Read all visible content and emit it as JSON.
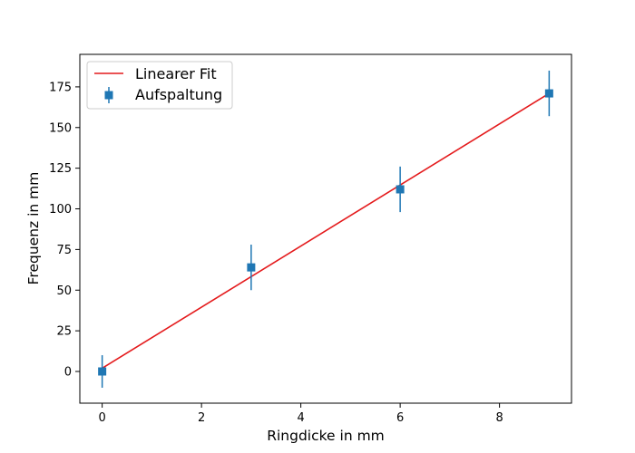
{
  "chart_data": {
    "type": "scatter",
    "title": "",
    "xlabel": "Ringdicke in mm",
    "ylabel": "Frequenz in mm",
    "xlim": [
      -0.45,
      9.45
    ],
    "ylim": [
      -19.5,
      195
    ],
    "xticks": [
      0,
      2,
      4,
      6,
      8
    ],
    "yticks": [
      0,
      25,
      50,
      75,
      100,
      125,
      150,
      175
    ],
    "grid": false,
    "legend_position": "top-left",
    "series": [
      {
        "name": "Aufspaltung",
        "kind": "errorbar",
        "marker": "square",
        "color": "#1f77b4",
        "x": [
          0,
          3,
          6,
          9
        ],
        "y": [
          0,
          64,
          112,
          171
        ],
        "yerr": [
          10,
          14,
          14,
          14
        ]
      },
      {
        "name": "Linearer Fit",
        "kind": "line",
        "color": "#e41a1c",
        "x": [
          0,
          9
        ],
        "y": [
          2,
          171
        ]
      }
    ]
  }
}
